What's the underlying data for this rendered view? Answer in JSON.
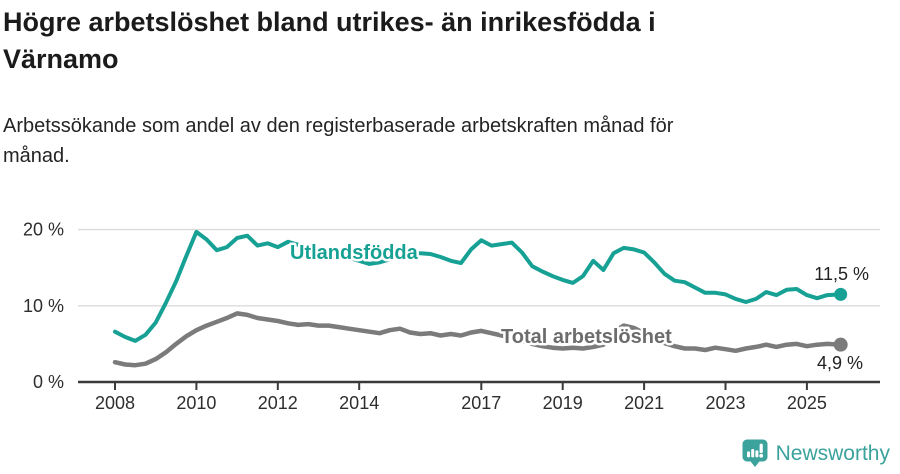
{
  "header": {
    "title": "Högre arbetslöshet bland utrikes- än inrikesfödda i Värnamo",
    "title_lines": [
      "Högre arbetslöshet bland utrikes- än inrikesfödda i",
      "Värnamo"
    ],
    "subtitle": "Arbetssökande som andel av den registerbaserade arbetskraften månad för månad.",
    "subtitle_lines": [
      "Arbetssökande som andel av den registerbaserade arbetskraften månad för",
      "månad."
    ]
  },
  "colors": {
    "teal_series": "#16a194",
    "gray_series": "#7b7b7b",
    "gray_label": "#6c6c6c",
    "axis_text": "#2e2e2e",
    "gridline": "#dbdbdb",
    "axis_line": "#3a3a3a",
    "value_label": "#222222",
    "brand_teal": "#3ba29c"
  },
  "chart_data": {
    "type": "line",
    "title": "Högre arbetslöshet bland utrikes- än inrikesfödda i Värnamo",
    "subtitle": "Arbetssökande som andel av den registerbaserade arbetskraften månad för månad.",
    "xlabel": "",
    "ylabel": "",
    "grid": "horizontal",
    "ylim": [
      0,
      21.5
    ],
    "xlim": [
      2007.4,
      2026.8
    ],
    "yticks": [
      {
        "value": 0,
        "label": "0 %"
      },
      {
        "value": 10,
        "label": "10 %"
      },
      {
        "value": 20,
        "label": "20 %"
      }
    ],
    "xticks": [
      {
        "value": 2008,
        "label": "2008"
      },
      {
        "value": 2010,
        "label": "2010"
      },
      {
        "value": 2012,
        "label": "2012"
      },
      {
        "value": 2014,
        "label": "2014"
      },
      {
        "value": 2017,
        "label": "2017"
      },
      {
        "value": 2019,
        "label": "2019"
      },
      {
        "value": 2021,
        "label": "2021"
      },
      {
        "value": 2023,
        "label": "2023"
      },
      {
        "value": 2025,
        "label": "2025"
      }
    ],
    "x": [
      2008.0,
      2008.25,
      2008.5,
      2008.75,
      2009.0,
      2009.25,
      2009.5,
      2009.75,
      2010.0,
      2010.25,
      2010.5,
      2010.75,
      2011.0,
      2011.25,
      2011.5,
      2011.75,
      2012.0,
      2012.25,
      2012.5,
      2012.75,
      2013.0,
      2013.25,
      2013.5,
      2013.75,
      2014.0,
      2014.25,
      2014.5,
      2014.75,
      2015.0,
      2015.25,
      2015.5,
      2015.75,
      2016.0,
      2016.25,
      2016.5,
      2016.75,
      2017.0,
      2017.25,
      2017.5,
      2017.75,
      2018.0,
      2018.25,
      2018.5,
      2018.75,
      2019.0,
      2019.25,
      2019.5,
      2019.75,
      2020.0,
      2020.25,
      2020.5,
      2020.75,
      2021.0,
      2021.25,
      2021.5,
      2021.75,
      2022.0,
      2022.25,
      2022.5,
      2022.75,
      2023.0,
      2023.25,
      2023.5,
      2023.75,
      2024.0,
      2024.25,
      2024.5,
      2024.75,
      2025.0,
      2025.25,
      2025.5,
      2025.83
    ],
    "series": [
      {
        "name": "Utlandsfödda",
        "color": "#16a194",
        "end_label": "11,5 %",
        "end_value": 11.5,
        "values": [
          6.6,
          5.9,
          5.4,
          6.2,
          7.8,
          10.4,
          13.2,
          16.5,
          19.7,
          18.7,
          17.3,
          17.7,
          18.9,
          19.2,
          17.9,
          18.2,
          17.7,
          18.4,
          18.0,
          17.6,
          17.4,
          17.1,
          16.7,
          16.3,
          15.9,
          15.5,
          15.7,
          16.1,
          16.4,
          16.7,
          16.9,
          16.8,
          16.4,
          15.9,
          15.6,
          17.4,
          18.6,
          17.9,
          18.1,
          18.3,
          17.0,
          15.2,
          14.5,
          13.9,
          13.4,
          13.0,
          13.9,
          15.9,
          14.7,
          16.9,
          17.6,
          17.4,
          17.0,
          15.7,
          14.2,
          13.3,
          13.1,
          12.4,
          11.7,
          11.7,
          11.5,
          10.9,
          10.5,
          10.9,
          11.8,
          11.4,
          12.1,
          12.2,
          11.4,
          11.0,
          11.4,
          11.5
        ]
      },
      {
        "name": "Total arbetslöshet",
        "color": "#7b7b7b",
        "end_label": "4,9 %",
        "end_value": 4.9,
        "values": [
          2.6,
          2.3,
          2.2,
          2.4,
          3.0,
          3.9,
          5.0,
          6.0,
          6.8,
          7.4,
          7.9,
          8.4,
          9.0,
          8.8,
          8.4,
          8.2,
          8.0,
          7.7,
          7.5,
          7.6,
          7.4,
          7.4,
          7.2,
          7.0,
          6.8,
          6.6,
          6.4,
          6.8,
          7.0,
          6.5,
          6.3,
          6.4,
          6.1,
          6.3,
          6.1,
          6.5,
          6.7,
          6.4,
          6.1,
          5.8,
          5.4,
          5.0,
          4.7,
          4.5,
          4.4,
          4.5,
          4.4,
          4.6,
          4.9,
          6.6,
          7.4,
          7.1,
          6.4,
          5.7,
          5.1,
          4.7,
          4.4,
          4.4,
          4.2,
          4.5,
          4.3,
          4.1,
          4.4,
          4.6,
          4.9,
          4.6,
          4.9,
          5.0,
          4.7,
          4.9,
          5.0,
          4.9
        ]
      }
    ]
  },
  "footer": {
    "brand": "Newsworthy",
    "logo_icon": "newsworthy-pin-barchart-icon"
  }
}
